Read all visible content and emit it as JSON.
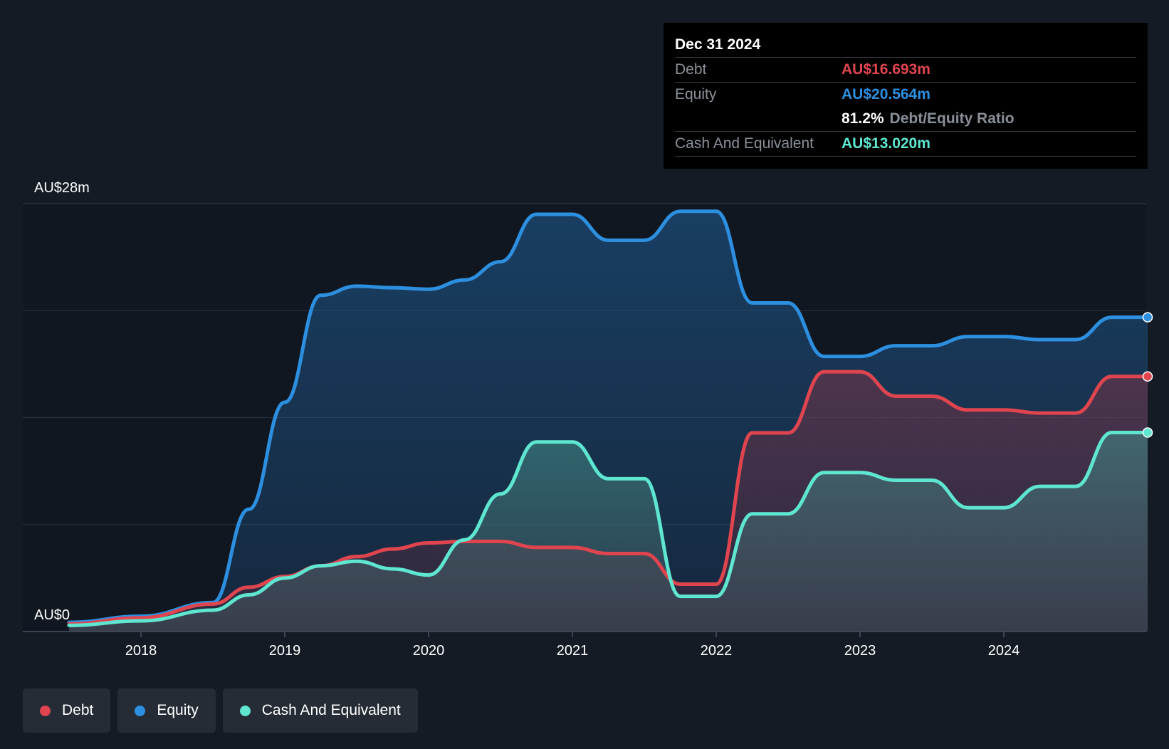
{
  "chart_data": {
    "type": "area",
    "currency": "AU$",
    "y_axis": {
      "top_label": "AU$28m",
      "bottom_label": "AU$0",
      "ylim": [
        0,
        28
      ]
    },
    "x_ticks": [
      "2018",
      "2019",
      "2020",
      "2021",
      "2022",
      "2023",
      "2024"
    ],
    "xlim": [
      2017.5,
      2025.0
    ],
    "series": [
      {
        "name": "Equity",
        "color": "#2d8fe0",
        "points": [
          [
            2017.5,
            0.6
          ],
          [
            2018.0,
            1.0
          ],
          [
            2018.5,
            1.9
          ],
          [
            2018.75,
            8.0
          ],
          [
            2019.0,
            15.0
          ],
          [
            2019.25,
            22.0
          ],
          [
            2019.5,
            22.6
          ],
          [
            2019.75,
            22.5
          ],
          [
            2020.0,
            22.4
          ],
          [
            2020.25,
            23.0
          ],
          [
            2020.5,
            24.2
          ],
          [
            2020.75,
            27.3
          ],
          [
            2021.0,
            27.3
          ],
          [
            2021.25,
            25.6
          ],
          [
            2021.5,
            25.6
          ],
          [
            2021.75,
            27.5
          ],
          [
            2022.0,
            27.5
          ],
          [
            2022.25,
            21.5
          ],
          [
            2022.5,
            21.5
          ],
          [
            2022.75,
            18.0
          ],
          [
            2023.0,
            18.0
          ],
          [
            2023.25,
            18.7
          ],
          [
            2023.5,
            18.7
          ],
          [
            2023.75,
            19.3
          ],
          [
            2024.0,
            19.3
          ],
          [
            2024.25,
            19.1
          ],
          [
            2024.5,
            19.1
          ],
          [
            2024.75,
            20.564
          ],
          [
            2025.0,
            20.564
          ]
        ]
      },
      {
        "name": "Debt",
        "color": "#e0454f",
        "points": [
          [
            2017.5,
            0.5
          ],
          [
            2018.0,
            0.9
          ],
          [
            2018.5,
            1.8
          ],
          [
            2018.75,
            2.9
          ],
          [
            2019.0,
            3.6
          ],
          [
            2019.25,
            4.3
          ],
          [
            2019.5,
            4.9
          ],
          [
            2019.75,
            5.4
          ],
          [
            2020.0,
            5.8
          ],
          [
            2020.25,
            5.9
          ],
          [
            2020.5,
            5.9
          ],
          [
            2020.75,
            5.5
          ],
          [
            2021.0,
            5.5
          ],
          [
            2021.25,
            5.1
          ],
          [
            2021.5,
            5.1
          ],
          [
            2021.75,
            3.1
          ],
          [
            2022.0,
            3.1
          ],
          [
            2022.25,
            13.0
          ],
          [
            2022.5,
            13.0
          ],
          [
            2022.75,
            17.0
          ],
          [
            2023.0,
            17.0
          ],
          [
            2023.25,
            15.4
          ],
          [
            2023.5,
            15.4
          ],
          [
            2023.75,
            14.5
          ],
          [
            2024.0,
            14.5
          ],
          [
            2024.25,
            14.3
          ],
          [
            2024.5,
            14.3
          ],
          [
            2024.75,
            16.693
          ],
          [
            2025.0,
            16.693
          ]
        ]
      },
      {
        "name": "Cash And Equivalent",
        "color": "#5ee6d0",
        "points": [
          [
            2017.5,
            0.4
          ],
          [
            2018.0,
            0.7
          ],
          [
            2018.5,
            1.4
          ],
          [
            2018.75,
            2.4
          ],
          [
            2019.0,
            3.5
          ],
          [
            2019.25,
            4.3
          ],
          [
            2019.5,
            4.6
          ],
          [
            2019.75,
            4.1
          ],
          [
            2020.0,
            3.7
          ],
          [
            2020.25,
            6.0
          ],
          [
            2020.5,
            9.0
          ],
          [
            2020.75,
            12.4
          ],
          [
            2021.0,
            12.4
          ],
          [
            2021.25,
            10.0
          ],
          [
            2021.5,
            10.0
          ],
          [
            2021.75,
            2.3
          ],
          [
            2022.0,
            2.3
          ],
          [
            2022.25,
            7.7
          ],
          [
            2022.5,
            7.7
          ],
          [
            2022.75,
            10.4
          ],
          [
            2023.0,
            10.4
          ],
          [
            2023.25,
            9.9
          ],
          [
            2023.5,
            9.9
          ],
          [
            2023.75,
            8.1
          ],
          [
            2024.0,
            8.1
          ],
          [
            2024.25,
            9.5
          ],
          [
            2024.5,
            9.5
          ],
          [
            2024.75,
            13.02
          ],
          [
            2025.0,
            13.02
          ]
        ]
      }
    ],
    "grid": true,
    "legend_position": "bottom-left"
  },
  "tooltip": {
    "date": "Dec 31 2024",
    "debt_label": "Debt",
    "debt_value": "AU$16.693m",
    "equity_label": "Equity",
    "equity_value": "AU$20.564m",
    "ratio_value": "81.2%",
    "ratio_label": "Debt/Equity Ratio",
    "cash_label": "Cash And Equivalent",
    "cash_value": "AU$13.020m"
  },
  "legend": [
    {
      "label": "Debt",
      "color": "#e0454f"
    },
    {
      "label": "Equity",
      "color": "#2d8fe0"
    },
    {
      "label": "Cash And Equivalent",
      "color": "#5ee6d0"
    }
  ]
}
